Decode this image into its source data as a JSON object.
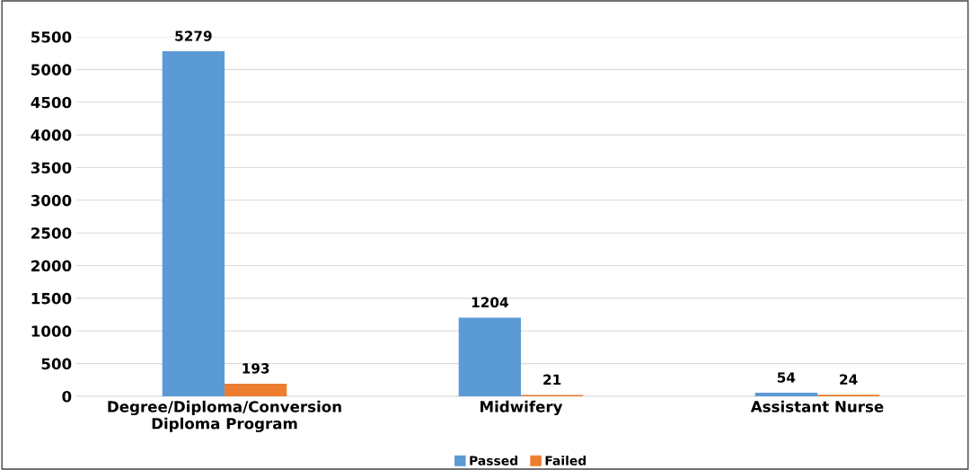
{
  "chart_data": {
    "type": "bar",
    "categories": [
      "Degree/Diploma/Conversion\nDiploma Program",
      "Midwifery",
      "Assistant Nurse"
    ],
    "series": [
      {
        "name": "Passed",
        "color": "#5b9bd5",
        "values": [
          5279,
          1204,
          54
        ]
      },
      {
        "name": "Failed",
        "color": "#ed7d31",
        "values": [
          193,
          21,
          24
        ]
      }
    ],
    "ylim": [
      0,
      5500
    ],
    "yticks": [
      0,
      500,
      1000,
      1500,
      2000,
      2500,
      3000,
      3500,
      4000,
      4500,
      5000,
      5500
    ],
    "grid": "y",
    "legend": "bottom",
    "data_labels": true
  }
}
